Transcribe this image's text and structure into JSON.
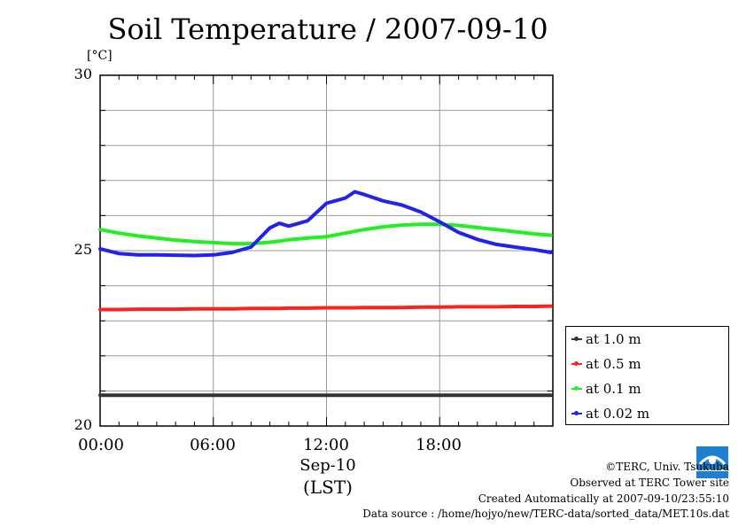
{
  "title": "Soil Temperature / 2007-09-10",
  "unit_label": "[°C]",
  "x_axis": {
    "ticks": [
      "00:00",
      "06:00",
      "12:00",
      "18:00"
    ],
    "date_label": "Sep-10",
    "tz_label": "(LST)"
  },
  "y_axis": {
    "ticks": [
      "20",
      "25",
      "30"
    ]
  },
  "footer": {
    "copyright": "©TERC, Univ. Tsukuba",
    "site": "Observed at TERC Tower site",
    "created": "Created Automatically at 2007-09-10/23:55:10",
    "source": "Data source : /home/hojyo/new/TERC-data/sorted_data/MET.10s.dat"
  },
  "logo_text": "TERC",
  "chart_data": {
    "type": "line",
    "title": "Soil Temperature / 2007-09-10",
    "xlabel": "Sep-10 (LST)",
    "ylabel": "[°C]",
    "xlim": [
      0,
      24
    ],
    "ylim": [
      20,
      30
    ],
    "grid": true,
    "legend_position": "right",
    "x": [
      0,
      1,
      2,
      3,
      4,
      5,
      6,
      7,
      8,
      9,
      9.5,
      10,
      11,
      12,
      13,
      13.5,
      14,
      15,
      16,
      17,
      18,
      19,
      20,
      21,
      22,
      23,
      23.9
    ],
    "series": [
      {
        "name": "at 1.0 m",
        "color": "#333333",
        "values": [
          20.88,
          20.88,
          20.88,
          20.88,
          20.88,
          20.88,
          20.88,
          20.88,
          20.88,
          20.88,
          20.88,
          20.88,
          20.88,
          20.88,
          20.88,
          20.88,
          20.88,
          20.88,
          20.88,
          20.88,
          20.88,
          20.88,
          20.88,
          20.88,
          20.88,
          20.88,
          20.88
        ]
      },
      {
        "name": "at 0.5 m",
        "color": "#ff2020",
        "values": [
          23.32,
          23.32,
          23.33,
          23.33,
          23.33,
          23.34,
          23.34,
          23.34,
          23.35,
          23.35,
          23.35,
          23.36,
          23.36,
          23.37,
          23.37,
          23.37,
          23.38,
          23.38,
          23.38,
          23.39,
          23.39,
          23.4,
          23.4,
          23.4,
          23.41,
          23.41,
          23.42
        ]
      },
      {
        "name": "at 0.1 m",
        "color": "#22ee22",
        "values": [
          25.6,
          25.5,
          25.42,
          25.36,
          25.3,
          25.26,
          25.23,
          25.2,
          25.2,
          25.24,
          25.27,
          25.31,
          25.36,
          25.4,
          25.5,
          25.55,
          25.6,
          25.68,
          25.73,
          25.75,
          25.75,
          25.72,
          25.66,
          25.6,
          25.54,
          25.48,
          25.44
        ]
      },
      {
        "name": "at 0.02 m",
        "color": "#2222ee",
        "values": [
          25.05,
          24.92,
          24.88,
          24.88,
          24.87,
          24.86,
          24.88,
          24.95,
          25.1,
          25.65,
          25.78,
          25.7,
          25.85,
          26.35,
          26.5,
          26.68,
          26.6,
          26.42,
          26.3,
          26.1,
          25.82,
          25.52,
          25.32,
          25.18,
          25.1,
          25.03,
          24.95
        ]
      }
    ]
  }
}
